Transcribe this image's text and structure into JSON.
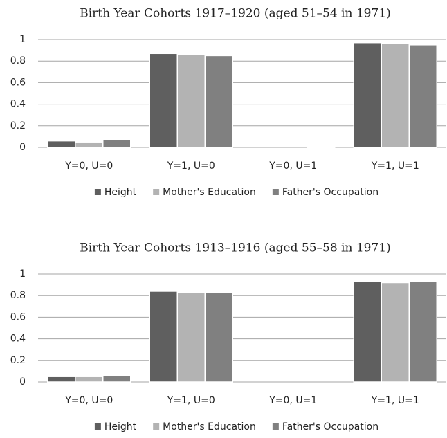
{
  "chart_data": [
    {
      "type": "bar",
      "title": "Birth Year Cohorts 1917–1920 (aged 51–54 in 1971)",
      "categories": [
        "Y=0, U=0",
        "Y=1, U=0",
        "Y=0, U=1",
        "Y=1, U=1"
      ],
      "series": [
        {
          "name": "Height",
          "color": "#5f5f5f",
          "values": [
            0.06,
            0.87,
            0,
            0.97
          ]
        },
        {
          "name": "Mother's Education",
          "color": "#b3b3b3",
          "values": [
            0.05,
            0.86,
            0,
            0.96
          ]
        },
        {
          "name": "Father's Occupation",
          "color": "#808080",
          "values": [
            0.07,
            0.85,
            0.01,
            0.95
          ]
        }
      ],
      "ylim": [
        0,
        1
      ],
      "yticks": [
        0,
        0.2,
        0.4,
        0.6,
        0.8,
        1
      ],
      "grid": true,
      "legend": "bottom"
    },
    {
      "type": "bar",
      "title": "Birth Year Cohorts 1913–1916 (aged 55–58 in 1971)",
      "categories": [
        "Y=0, U=0",
        "Y=1, U=0",
        "Y=0, U=1",
        "Y=1, U=1"
      ],
      "series": [
        {
          "name": "Height",
          "color": "#5f5f5f",
          "values": [
            0.05,
            0.84,
            0,
            0.93
          ]
        },
        {
          "name": "Mother's Education",
          "color": "#b3b3b3",
          "values": [
            0.05,
            0.83,
            0,
            0.92
          ]
        },
        {
          "name": "Father's Occupation",
          "color": "#808080",
          "values": [
            0.06,
            0.83,
            0,
            0.93
          ]
        }
      ],
      "ylim": [
        0,
        1
      ],
      "yticks": [
        0,
        0.2,
        0.4,
        0.6,
        0.8,
        1
      ],
      "grid": true,
      "legend": "bottom"
    }
  ]
}
